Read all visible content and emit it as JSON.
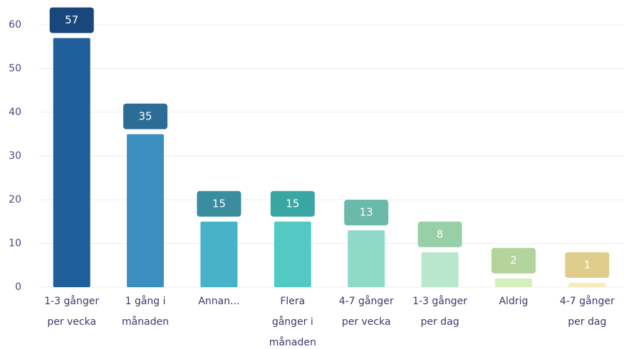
{
  "chart_data": {
    "type": "bar",
    "categories": [
      [
        "1-3 gånger",
        "per vecka"
      ],
      [
        "1 gång i",
        "månaden"
      ],
      [
        "Annan..."
      ],
      [
        "Flera",
        "gånger i",
        "månaden"
      ],
      [
        "4-7 gånger",
        "per vecka"
      ],
      [
        "1-3 gånger",
        "per dag"
      ],
      [
        "Aldrig"
      ],
      [
        "4-7 gånger",
        "per dag"
      ]
    ],
    "values": [
      57,
      35,
      15,
      15,
      13,
      8,
      2,
      1
    ],
    "colors": [
      "#1f5f9b",
      "#3a8fc0",
      "#46b3c9",
      "#52c9c4",
      "#8fd9c8",
      "#b9e7cd",
      "#d5efbf",
      "#f5edbb"
    ],
    "label_colors": [
      "#19477d",
      "#2c6d96",
      "#3a8d9e",
      "#3aa6a3",
      "#6ab9a9",
      "#97cfa7",
      "#b3d49b",
      "#dfcd8d"
    ],
    "ylim": [
      0,
      60
    ],
    "yticks": [
      0,
      10,
      20,
      30,
      40,
      50,
      60
    ],
    "grid": true
  }
}
